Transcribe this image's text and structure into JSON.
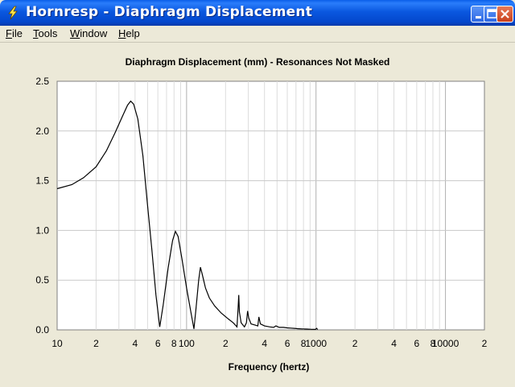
{
  "window": {
    "title": "Hornresp - Diaphragm Displacement",
    "controls": [
      "minimize",
      "maximize",
      "close"
    ]
  },
  "menu": {
    "items": [
      {
        "label": "File",
        "mnemonic": "F"
      },
      {
        "label": "Tools",
        "mnemonic": "T"
      },
      {
        "label": "Window",
        "mnemonic": "W"
      },
      {
        "label": "Help",
        "mnemonic": "H"
      }
    ]
  },
  "chart_data": {
    "type": "line",
    "title": "Diaphragm Displacement (mm) - Resonances Not Masked",
    "xlabel": "Frequency (hertz)",
    "ylabel": "",
    "x_scale": "log",
    "xlim": [
      10,
      20000
    ],
    "ylim": [
      0,
      2.5
    ],
    "grid": true,
    "x_tick_labels": [
      {
        "value": 10,
        "label": "10"
      },
      {
        "value": 20,
        "label": "2"
      },
      {
        "value": 40,
        "label": "4"
      },
      {
        "value": 60,
        "label": "6"
      },
      {
        "value": 80,
        "label": "8"
      },
      {
        "value": 100,
        "label": "100"
      },
      {
        "value": 200,
        "label": "2"
      },
      {
        "value": 400,
        "label": "4"
      },
      {
        "value": 600,
        "label": "6"
      },
      {
        "value": 800,
        "label": "8"
      },
      {
        "value": 1000,
        "label": "1000"
      },
      {
        "value": 2000,
        "label": "2"
      },
      {
        "value": 4000,
        "label": "4"
      },
      {
        "value": 6000,
        "label": "6"
      },
      {
        "value": 8000,
        "label": "8"
      },
      {
        "value": 10000,
        "label": "10000"
      },
      {
        "value": 20000,
        "label": "2"
      }
    ],
    "y_tick_labels": [
      {
        "value": 0,
        "label": "0.0"
      },
      {
        "value": 0.5,
        "label": "0.5"
      },
      {
        "value": 1.0,
        "label": "1.0"
      },
      {
        "value": 1.5,
        "label": "1.5"
      },
      {
        "value": 2.0,
        "label": "2.0"
      },
      {
        "value": 2.5,
        "label": "2.5"
      }
    ],
    "series": [
      {
        "color": "#000000",
        "points": [
          [
            10,
            1.42
          ],
          [
            13,
            1.46
          ],
          [
            16,
            1.53
          ],
          [
            20,
            1.64
          ],
          [
            24,
            1.8
          ],
          [
            28,
            1.98
          ],
          [
            32,
            2.15
          ],
          [
            35,
            2.26
          ],
          [
            37,
            2.3
          ],
          [
            39,
            2.27
          ],
          [
            42,
            2.12
          ],
          [
            46,
            1.75
          ],
          [
            50,
            1.25
          ],
          [
            54,
            0.8
          ],
          [
            58,
            0.35
          ],
          [
            62,
            0.03
          ],
          [
            66,
            0.25
          ],
          [
            72,
            0.62
          ],
          [
            78,
            0.9
          ],
          [
            82,
            0.99
          ],
          [
            86,
            0.94
          ],
          [
            92,
            0.72
          ],
          [
            100,
            0.42
          ],
          [
            108,
            0.18
          ],
          [
            114,
            0.01
          ],
          [
            118,
            0.2
          ],
          [
            124,
            0.5
          ],
          [
            128,
            0.63
          ],
          [
            132,
            0.56
          ],
          [
            140,
            0.42
          ],
          [
            150,
            0.32
          ],
          [
            165,
            0.24
          ],
          [
            185,
            0.17
          ],
          [
            210,
            0.11
          ],
          [
            230,
            0.07
          ],
          [
            245,
            0.03
          ],
          [
            250,
            0.22
          ],
          [
            253,
            0.35
          ],
          [
            256,
            0.18
          ],
          [
            264,
            0.07
          ],
          [
            280,
            0.03
          ],
          [
            290,
            0.07
          ],
          [
            296,
            0.19
          ],
          [
            302,
            0.12
          ],
          [
            315,
            0.06
          ],
          [
            335,
            0.05
          ],
          [
            355,
            0.04
          ],
          [
            362,
            0.13
          ],
          [
            372,
            0.06
          ],
          [
            400,
            0.04
          ],
          [
            440,
            0.03
          ],
          [
            470,
            0.025
          ],
          [
            490,
            0.04
          ],
          [
            520,
            0.025
          ],
          [
            560,
            0.025
          ],
          [
            600,
            0.02
          ],
          [
            640,
            0.018
          ],
          [
            680,
            0.015
          ],
          [
            720,
            0.012
          ],
          [
            780,
            0.01
          ],
          [
            850,
            0.008
          ],
          [
            920,
            0.006
          ],
          [
            990,
            0.005
          ],
          [
            1010,
            0.015
          ],
          [
            1030,
            0.004
          ]
        ]
      }
    ]
  }
}
